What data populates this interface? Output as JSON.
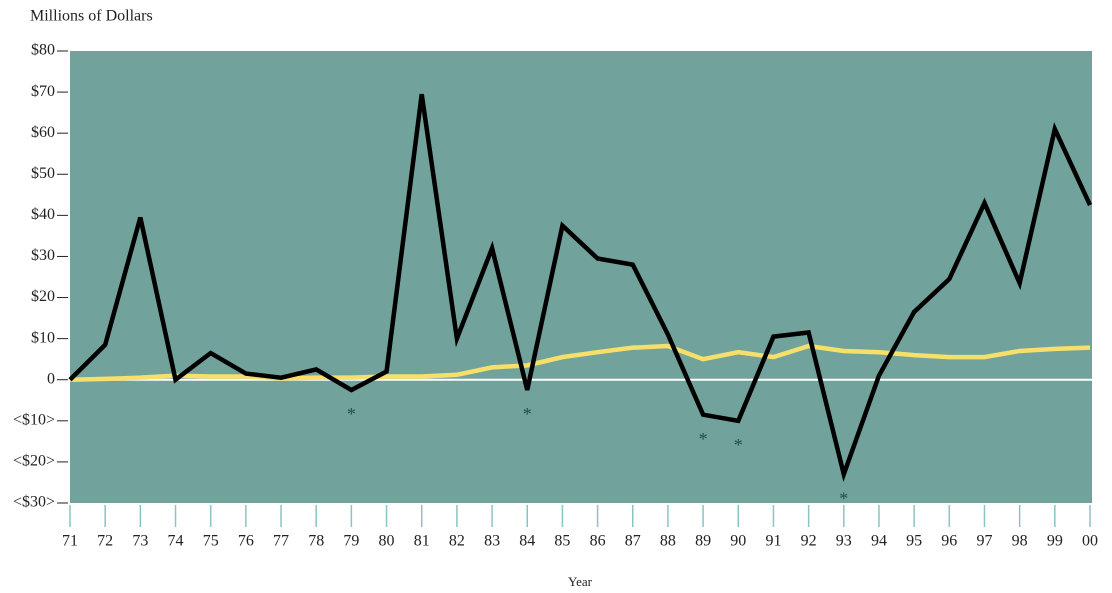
{
  "chart_data": {
    "type": "line",
    "ylabel": "Millions of Dollars",
    "xlabel": "Year",
    "categories": [
      "71",
      "72",
      "73",
      "74",
      "75",
      "76",
      "77",
      "78",
      "79",
      "80",
      "81",
      "82",
      "83",
      "84",
      "85",
      "86",
      "87",
      "88",
      "89",
      "90",
      "91",
      "92",
      "93",
      "94",
      "95",
      "96",
      "97",
      "98",
      "99",
      "00"
    ],
    "series": [
      {
        "color": "#000000",
        "values": [
          0,
          8.5,
          39.5,
          0,
          6.5,
          1.5,
          0.5,
          2.5,
          -2.5,
          2,
          69.5,
          10,
          32,
          -2.5,
          37.5,
          29.5,
          28,
          11,
          -8.5,
          -10,
          10.5,
          11.5,
          -23,
          1,
          16.5,
          24.5,
          43,
          23.5,
          61,
          42.5
        ]
      },
      {
        "color": "#f7e06a",
        "values": [
          0,
          0.2,
          0.5,
          1,
          0.8,
          0.8,
          0.3,
          0.5,
          0.5,
          0.8,
          0.8,
          1.2,
          3,
          3.5,
          5.5,
          6.7,
          7.8,
          8.2,
          5,
          6.7,
          5.5,
          8.2,
          7,
          6.7,
          6,
          5.5,
          5.5,
          7,
          7.5,
          7.8
        ]
      }
    ],
    "ylim": [
      -30,
      80
    ],
    "yticks": [
      {
        "value": 80,
        "label": "$80"
      },
      {
        "value": 70,
        "label": "$70"
      },
      {
        "value": 60,
        "label": "$60"
      },
      {
        "value": 50,
        "label": "$50"
      },
      {
        "value": 40,
        "label": "$40"
      },
      {
        "value": 30,
        "label": "$30"
      },
      {
        "value": 20,
        "label": "$20"
      },
      {
        "value": 10,
        "label": "$10"
      },
      0,
      {
        "value": -10,
        "label": "<$10>"
      },
      {
        "value": -20,
        "label": "<$20>"
      },
      {
        "value": -30,
        "label": "<$30>"
      }
    ],
    "plot_background": "#72a29c",
    "zero_line_color": "#ffffff",
    "annotations": [
      {
        "text": "*",
        "x": "79"
      },
      {
        "text": "*",
        "x": "84"
      },
      {
        "text": "*",
        "x": "89"
      },
      {
        "text": "*",
        "x": "90"
      },
      {
        "text": "*",
        "x": "93"
      }
    ]
  }
}
